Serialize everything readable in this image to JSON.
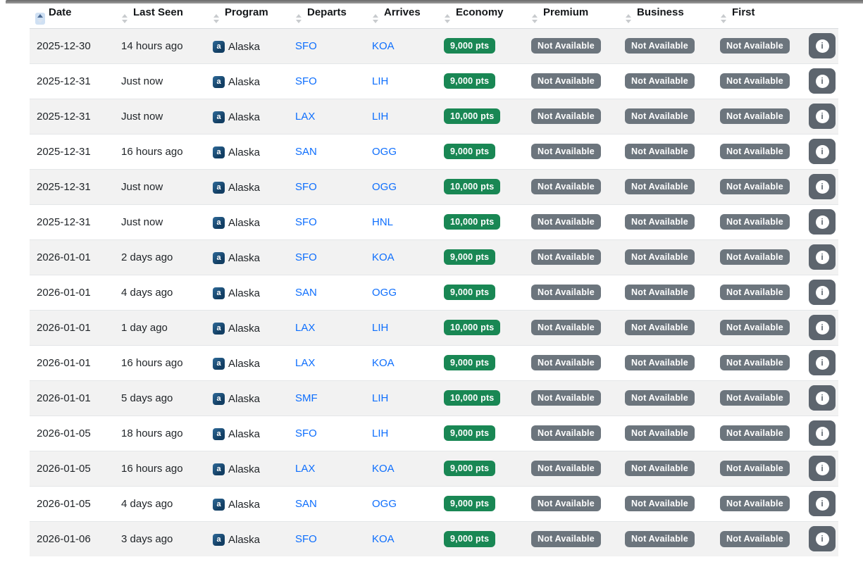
{
  "table": {
    "columns": [
      {
        "key": "date",
        "label": "Date",
        "sorted": "asc"
      },
      {
        "key": "last_seen",
        "label": "Last Seen",
        "sorted": null
      },
      {
        "key": "program",
        "label": "Program",
        "sorted": null
      },
      {
        "key": "departs",
        "label": "Departs",
        "sorted": null
      },
      {
        "key": "arrives",
        "label": "Arrives",
        "sorted": null
      },
      {
        "key": "economy",
        "label": "Economy",
        "sorted": null
      },
      {
        "key": "premium",
        "label": "Premium",
        "sorted": null
      },
      {
        "key": "business",
        "label": "Business",
        "sorted": null
      },
      {
        "key": "first",
        "label": "First",
        "sorted": null
      },
      {
        "key": "info",
        "label": "",
        "sorted": null
      }
    ],
    "not_available_label": "Not Available",
    "rows": [
      {
        "date": "2025-12-30",
        "last_seen": "14 hours ago",
        "program": "Alaska",
        "departs": "SFO",
        "arrives": "KOA",
        "economy": "9,000 pts",
        "premium": "Not Available",
        "business": "Not Available",
        "first": "Not Available"
      },
      {
        "date": "2025-12-31",
        "last_seen": "Just now",
        "program": "Alaska",
        "departs": "SFO",
        "arrives": "LIH",
        "economy": "9,000 pts",
        "premium": "Not Available",
        "business": "Not Available",
        "first": "Not Available"
      },
      {
        "date": "2025-12-31",
        "last_seen": "Just now",
        "program": "Alaska",
        "departs": "LAX",
        "arrives": "LIH",
        "economy": "10,000 pts",
        "premium": "Not Available",
        "business": "Not Available",
        "first": "Not Available"
      },
      {
        "date": "2025-12-31",
        "last_seen": "16 hours ago",
        "program": "Alaska",
        "departs": "SAN",
        "arrives": "OGG",
        "economy": "9,000 pts",
        "premium": "Not Available",
        "business": "Not Available",
        "first": "Not Available"
      },
      {
        "date": "2025-12-31",
        "last_seen": "Just now",
        "program": "Alaska",
        "departs": "SFO",
        "arrives": "OGG",
        "economy": "10,000 pts",
        "premium": "Not Available",
        "business": "Not Available",
        "first": "Not Available"
      },
      {
        "date": "2025-12-31",
        "last_seen": "Just now",
        "program": "Alaska",
        "departs": "SFO",
        "arrives": "HNL",
        "economy": "10,000 pts",
        "premium": "Not Available",
        "business": "Not Available",
        "first": "Not Available"
      },
      {
        "date": "2026-01-01",
        "last_seen": "2 days ago",
        "program": "Alaska",
        "departs": "SFO",
        "arrives": "KOA",
        "economy": "9,000 pts",
        "premium": "Not Available",
        "business": "Not Available",
        "first": "Not Available"
      },
      {
        "date": "2026-01-01",
        "last_seen": "4 days ago",
        "program": "Alaska",
        "departs": "SAN",
        "arrives": "OGG",
        "economy": "9,000 pts",
        "premium": "Not Available",
        "business": "Not Available",
        "first": "Not Available"
      },
      {
        "date": "2026-01-01",
        "last_seen": "1 day ago",
        "program": "Alaska",
        "departs": "LAX",
        "arrives": "LIH",
        "economy": "10,000 pts",
        "premium": "Not Available",
        "business": "Not Available",
        "first": "Not Available"
      },
      {
        "date": "2026-01-01",
        "last_seen": "16 hours ago",
        "program": "Alaska",
        "departs": "LAX",
        "arrives": "KOA",
        "economy": "9,000 pts",
        "premium": "Not Available",
        "business": "Not Available",
        "first": "Not Available"
      },
      {
        "date": "2026-01-01",
        "last_seen": "5 days ago",
        "program": "Alaska",
        "departs": "SMF",
        "arrives": "LIH",
        "economy": "10,000 pts",
        "premium": "Not Available",
        "business": "Not Available",
        "first": "Not Available"
      },
      {
        "date": "2026-01-05",
        "last_seen": "18 hours ago",
        "program": "Alaska",
        "departs": "SFO",
        "arrives": "LIH",
        "economy": "9,000 pts",
        "premium": "Not Available",
        "business": "Not Available",
        "first": "Not Available"
      },
      {
        "date": "2026-01-05",
        "last_seen": "16 hours ago",
        "program": "Alaska",
        "departs": "LAX",
        "arrives": "KOA",
        "economy": "9,000 pts",
        "premium": "Not Available",
        "business": "Not Available",
        "first": "Not Available"
      },
      {
        "date": "2026-01-05",
        "last_seen": "4 days ago",
        "program": "Alaska",
        "departs": "SAN",
        "arrives": "OGG",
        "economy": "9,000 pts",
        "premium": "Not Available",
        "business": "Not Available",
        "first": "Not Available"
      },
      {
        "date": "2026-01-06",
        "last_seen": "3 days ago",
        "program": "Alaska",
        "departs": "SFO",
        "arrives": "KOA",
        "economy": "9,000 pts",
        "premium": "Not Available",
        "business": "Not Available",
        "first": "Not Available"
      }
    ]
  },
  "icons": {
    "program_logo_glyph": "a",
    "info_glyph": "i"
  },
  "colors": {
    "badge_available": "#198754",
    "badge_unavailable": "#6c757d",
    "link": "#0d6efd",
    "row_stripe": "#f2f2f2",
    "info_button": "#5d656e",
    "sort_active_bg": "#cfe0f3",
    "sort_active_arrow": "#4a6a94"
  }
}
